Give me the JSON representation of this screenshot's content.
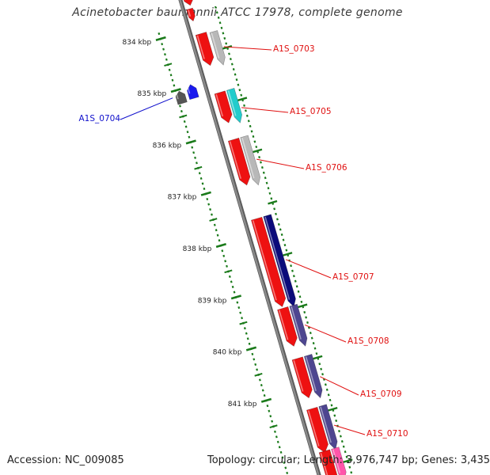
{
  "header": {
    "title": "Acinetobacter baumannii ATCC 17978, complete genome"
  },
  "footer": {
    "accession": "Accession: NC_009085",
    "summary": "Topology: circular; Length: 3,976,747 bp; Genes: 3,435"
  },
  "scale": {
    "unit": "kbp",
    "ticks": [
      "834 kbp",
      "835 kbp",
      "836 kbp",
      "837 kbp",
      "838 kbp",
      "839 kbp",
      "840 kbp",
      "841 kbp"
    ]
  },
  "colors": {
    "backbone": "#8a8a8a",
    "scale": "#1a7a1a",
    "label_red": "#e01010",
    "label_blue": "#1010cc",
    "gene_red": "#ee1111",
    "gene_gray": "#b8b8b8",
    "gene_dark_gray": "#555555",
    "gene_blue": "#1a1aee",
    "gene_cyan": "#22cccc",
    "gene_navy": "#0b0b7a",
    "gene_slate": "#4e4690",
    "gene_pink": "#ff55aa"
  },
  "genes": [
    {
      "label": "A1S_0703",
      "color": "label_red",
      "strand": "plus"
    },
    {
      "label": "A1S_0704",
      "color": "label_blue",
      "strand": "minus"
    },
    {
      "label": "A1S_0705",
      "color": "label_red",
      "strand": "plus"
    },
    {
      "label": "A1S_0706",
      "color": "label_red",
      "strand": "plus"
    },
    {
      "label": "A1S_0707",
      "color": "label_red",
      "strand": "plus"
    },
    {
      "label": "A1S_0708",
      "color": "label_red",
      "strand": "plus"
    },
    {
      "label": "A1S_0709",
      "color": "label_red",
      "strand": "plus"
    },
    {
      "label": "A1S_0710",
      "color": "label_red",
      "strand": "plus"
    }
  ]
}
